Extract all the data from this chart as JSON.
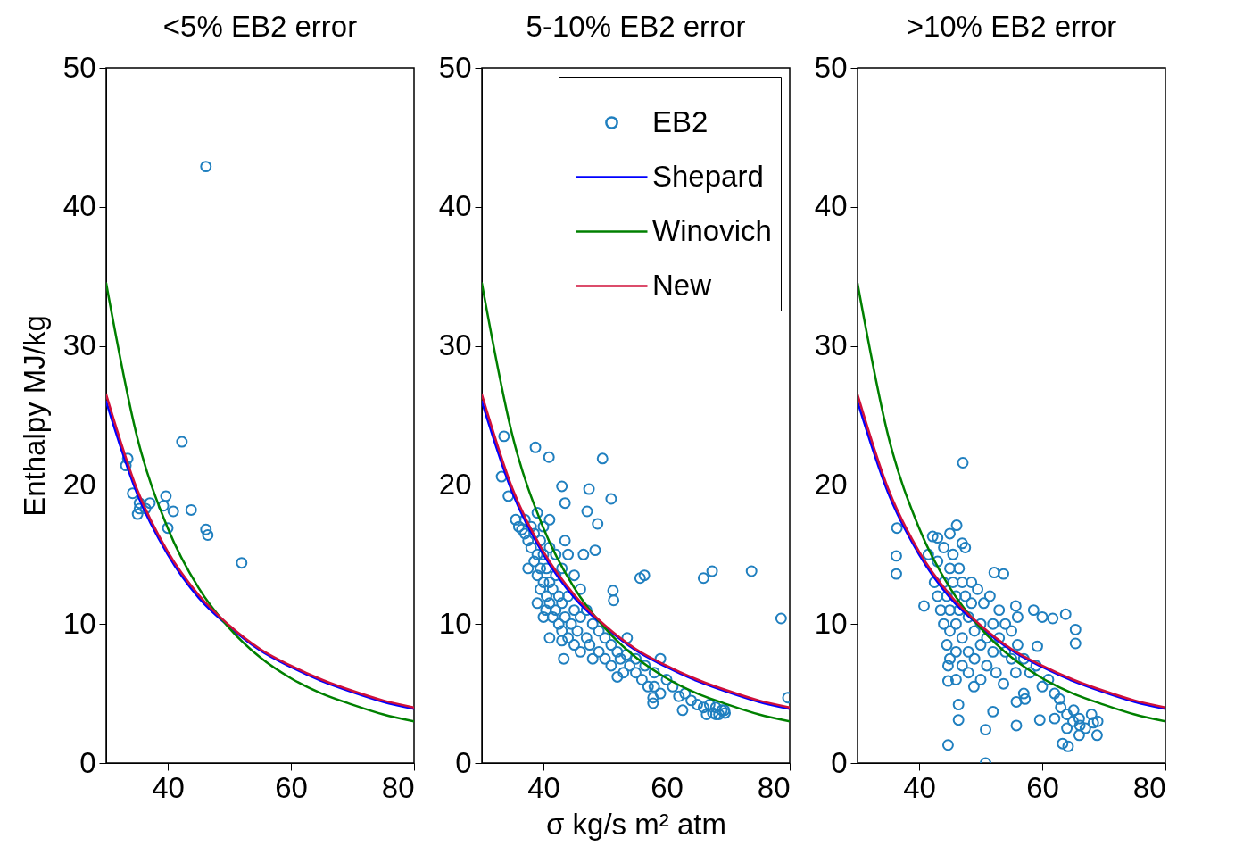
{
  "chart_data": [
    {
      "type": "scatter",
      "title": "<5% EB2 error",
      "ylabel": "Enthalpy MJ/kg",
      "xlim": [
        30,
        80
      ],
      "ylim": [
        0,
        50
      ],
      "xticks": [
        40,
        60,
        80
      ],
      "yticks": [
        0,
        10,
        20,
        30,
        40,
        50
      ],
      "grid": false,
      "legend": false,
      "line_style": "solid",
      "series": [
        {
          "marker": "circle",
          "color": "#1f7fbf",
          "x": [
            46.2,
            42.3,
            33.5,
            33.2,
            34.3,
            35.4,
            35.1,
            37.1,
            36.4,
            39.7,
            39.3,
            40.9,
            40,
            43.8,
            46.2,
            46.5,
            52,
            35.4
          ],
          "values": [
            42.9,
            23.1,
            21.9,
            21.4,
            19.4,
            18.3,
            17.9,
            18.7,
            18.3,
            19.2,
            18.5,
            18.1,
            16.9,
            18.2,
            16.8,
            16.4,
            14.4,
            18.7
          ]
        },
        {
          "type": "line",
          "color": "#0000ff",
          "x": [
            30,
            35,
            40,
            45,
            50,
            55,
            60,
            65,
            70,
            75,
            80
          ],
          "values": [
            26,
            19.4,
            15,
            11.9,
            9.8,
            8.1,
            6.9,
            5.9,
            5.1,
            4.4,
            3.9
          ]
        },
        {
          "type": "line",
          "color": "#008000",
          "x": [
            30,
            35,
            40,
            45,
            50,
            55,
            60,
            65,
            70,
            75,
            80
          ],
          "values": [
            34.5,
            23.5,
            16.9,
            12.6,
            9.7,
            7.6,
            6.1,
            5,
            4.2,
            3.5,
            3
          ]
        },
        {
          "type": "line",
          "color": "#d0103a",
          "x": [
            30,
            35,
            40,
            45,
            50,
            55,
            60,
            65,
            70,
            75,
            80
          ],
          "values": [
            26.5,
            19.7,
            15.2,
            12.1,
            9.9,
            8.2,
            7,
            6,
            5.2,
            4.5,
            4
          ]
        }
      ]
    },
    {
      "type": "scatter",
      "title": "5-10% EB2 error",
      "xlabel": "σ kg/s m² atm",
      "xlim": [
        30,
        80
      ],
      "ylim": [
        0,
        50
      ],
      "xticks": [
        40,
        60,
        80
      ],
      "yticks": [
        0,
        10,
        20,
        30,
        40,
        50
      ],
      "grid": false,
      "legend": "top right",
      "line_style": "solid",
      "series": [
        {
          "marker": "circle",
          "name": "EB2",
          "color": "#1f7fbf",
          "x": [
            38.7,
            40.9,
            49.6,
            43,
            47.4,
            51,
            43.5,
            47.1,
            48.8,
            48.4,
            56.4,
            55.7,
            67.4,
            66,
            73.8,
            78.6,
            79.7,
            51.3,
            51.4,
            40.4,
            43,
            43.3,
            52,
            57.8,
            57.8,
            62.6,
            68,
            69.4,
            53.6,
            59,
            33.2,
            34.3,
            33.6,
            35.5,
            36,
            36.5,
            37,
            37,
            37.5,
            38,
            38,
            38.5,
            38.5,
            39,
            39,
            39,
            39.5,
            39.5,
            39.5,
            40,
            40,
            40,
            40.5,
            40.5,
            41,
            41,
            41,
            41,
            41.5,
            41.5,
            42,
            42,
            42,
            42.5,
            42.5,
            43,
            43,
            43,
            43.5,
            43.5,
            44,
            44,
            44,
            44.5,
            45,
            45,
            45,
            45.5,
            46,
            46,
            46,
            46.5,
            47,
            47,
            47.5,
            48,
            48,
            49,
            49,
            50,
            50,
            51,
            51,
            52,
            52.5,
            53,
            53.5,
            54,
            55,
            55,
            56,
            56.5,
            57,
            58,
            58,
            59,
            60,
            61,
            62,
            63,
            64,
            65,
            66,
            66.5,
            67,
            67.5,
            68,
            68.5,
            69,
            69.5,
            39,
            37.5,
            40,
            41
          ],
          "values": [
            22.7,
            22,
            21.9,
            19.9,
            19.7,
            19,
            18.7,
            18.1,
            17.2,
            15.3,
            13.5,
            13.3,
            13.8,
            13.3,
            13.8,
            10.4,
            4.7,
            12.4,
            11.7,
            11,
            8.8,
            7.5,
            6.2,
            4.3,
            4.7,
            3.8,
            3.5,
            3.8,
            9,
            7.5,
            20.6,
            19.2,
            23.5,
            17.5,
            17,
            16.8,
            16.5,
            17.5,
            16,
            15.5,
            17,
            14.5,
            16.5,
            13.5,
            15,
            18,
            12.5,
            14,
            16,
            13,
            15,
            17,
            12,
            14,
            11.5,
            13,
            15.5,
            17.5,
            10.5,
            12.5,
            11,
            13.5,
            15,
            10,
            12,
            9.5,
            11.5,
            14,
            10.5,
            16,
            9,
            12,
            15,
            10,
            8.5,
            11,
            13.5,
            9.5,
            8,
            10.5,
            12.5,
            15,
            9,
            11,
            8.5,
            7.5,
            10,
            8,
            9.5,
            7.5,
            9,
            8.5,
            7,
            8,
            7.5,
            6.5,
            7.8,
            7,
            6.5,
            7.5,
            6,
            7,
            5.5,
            6.5,
            5.5,
            5,
            6,
            5.5,
            4.8,
            5,
            4.5,
            4.2,
            4,
            3.5,
            4.2,
            3.6,
            4,
            3.5,
            3.8,
            3.6,
            11.5,
            14,
            10.5,
            9
          ]
        },
        {
          "type": "line",
          "name": "Shepard",
          "color": "#0000ff",
          "x": [
            30,
            35,
            40,
            45,
            50,
            55,
            60,
            65,
            70,
            75,
            80
          ],
          "values": [
            26,
            19.4,
            15,
            11.9,
            9.8,
            8.1,
            6.9,
            5.9,
            5.1,
            4.4,
            3.9
          ]
        },
        {
          "type": "line",
          "name": "Winovich",
          "color": "#008000",
          "x": [
            30,
            35,
            40,
            45,
            50,
            55,
            60,
            65,
            70,
            75,
            80
          ],
          "values": [
            34.5,
            23.5,
            16.9,
            12.6,
            9.7,
            7.6,
            6.1,
            5,
            4.2,
            3.5,
            3
          ]
        },
        {
          "type": "line",
          "name": "New",
          "color": "#d0103a",
          "x": [
            30,
            35,
            40,
            45,
            50,
            55,
            60,
            65,
            70,
            75,
            80
          ],
          "values": [
            26.5,
            19.7,
            15.2,
            12.1,
            9.9,
            8.2,
            7,
            6,
            5.2,
            4.5,
            4
          ]
        }
      ]
    },
    {
      "type": "scatter",
      "title": ">10% EB2 error",
      "xlim": [
        30,
        80
      ],
      "ylim": [
        0,
        50
      ],
      "xticks": [
        40,
        60,
        80
      ],
      "yticks": [
        0,
        10,
        20,
        30,
        40,
        50
      ],
      "grid": false,
      "legend": false,
      "line_style": "solid",
      "series": [
        {
          "marker": "circle",
          "color": "#1f7fbf",
          "x": [
            47.1,
            36.4,
            36.3,
            36.3,
            46.1,
            42.2,
            40.8,
            50.8,
            44.7,
            52.2,
            53.7,
            58.6,
            61.7,
            63.8,
            65.4,
            65.4,
            59.2,
            55.7,
            46.4,
            46.4,
            50.8,
            52,
            55.8,
            59.6,
            57.2,
            55.8,
            63.3,
            64.2,
            68.3,
            68.9,
            66.1,
            65.1,
            62.8,
            44.7,
            44.7,
            48.9,
            53.7,
            55.7,
            42.5,
            43,
            43,
            43.5,
            44,
            44,
            44,
            44.5,
            44.5,
            45,
            45,
            45,
            45,
            45.5,
            45.5,
            46,
            46,
            46,
            46,
            46.5,
            46.5,
            47,
            47,
            47,
            47.5,
            47.5,
            48,
            48,
            48,
            48.5,
            48.5,
            49,
            49,
            49.5,
            50,
            50,
            50,
            50.5,
            51,
            51,
            51.5,
            52,
            52,
            52.5,
            53,
            53,
            54,
            54,
            55,
            55,
            56,
            56,
            57,
            57,
            58,
            59,
            60,
            60,
            61,
            62,
            63,
            64,
            65,
            66,
            67,
            68,
            69,
            66,
            64,
            62,
            45,
            43,
            41.5,
            47
          ],
          "values": [
            21.6,
            16.9,
            14.9,
            13.6,
            17.1,
            16.3,
            11.3,
            0,
            1.3,
            13.7,
            13.6,
            11,
            10.4,
            10.7,
            9.6,
            8.6,
            8.4,
            11.3,
            4.2,
            3.1,
            2.4,
            3.7,
            2.7,
            3.1,
            4.6,
            4.4,
            1.4,
            1.2,
            2.9,
            2,
            2.7,
            3.8,
            4.6,
            5.9,
            7,
            5.5,
            5.7,
            6.5,
            13,
            12,
            14.5,
            11,
            13,
            15.5,
            10,
            12,
            8.5,
            14,
            11,
            9.5,
            7.5,
            13,
            15,
            12,
            10,
            8,
            6,
            14,
            11,
            13,
            9,
            7,
            15.5,
            12,
            10.5,
            8,
            6.5,
            13,
            11.5,
            9.5,
            7.5,
            12.5,
            10,
            8.5,
            6,
            11.5,
            9,
            7,
            12,
            10,
            8,
            6.5,
            11,
            9,
            10,
            8,
            9.5,
            7.5,
            8.5,
            10.5,
            7.5,
            5,
            6.5,
            7,
            5.5,
            10.5,
            6,
            5,
            4,
            3.5,
            3,
            3.2,
            2.5,
            3.5,
            3,
            2,
            2.5,
            3.2,
            16.5,
            16.2,
            15,
            15.8
          ]
        },
        {
          "type": "line",
          "color": "#0000ff",
          "x": [
            30,
            35,
            40,
            45,
            50,
            55,
            60,
            65,
            70,
            75,
            80
          ],
          "values": [
            26,
            19.4,
            15,
            11.9,
            9.8,
            8.1,
            6.9,
            5.9,
            5.1,
            4.4,
            3.9
          ]
        },
        {
          "type": "line",
          "color": "#008000",
          "x": [
            30,
            35,
            40,
            45,
            50,
            55,
            60,
            65,
            70,
            75,
            80
          ],
          "values": [
            34.5,
            23.5,
            16.9,
            12.6,
            9.7,
            7.6,
            6.1,
            5,
            4.2,
            3.5,
            3
          ]
        },
        {
          "type": "line",
          "color": "#d0103a",
          "x": [
            30,
            35,
            40,
            45,
            50,
            55,
            60,
            65,
            70,
            75,
            80
          ],
          "values": [
            26.5,
            19.7,
            15.2,
            12.1,
            9.9,
            8.2,
            7,
            6,
            5.2,
            4.5,
            4
          ]
        }
      ]
    }
  ]
}
